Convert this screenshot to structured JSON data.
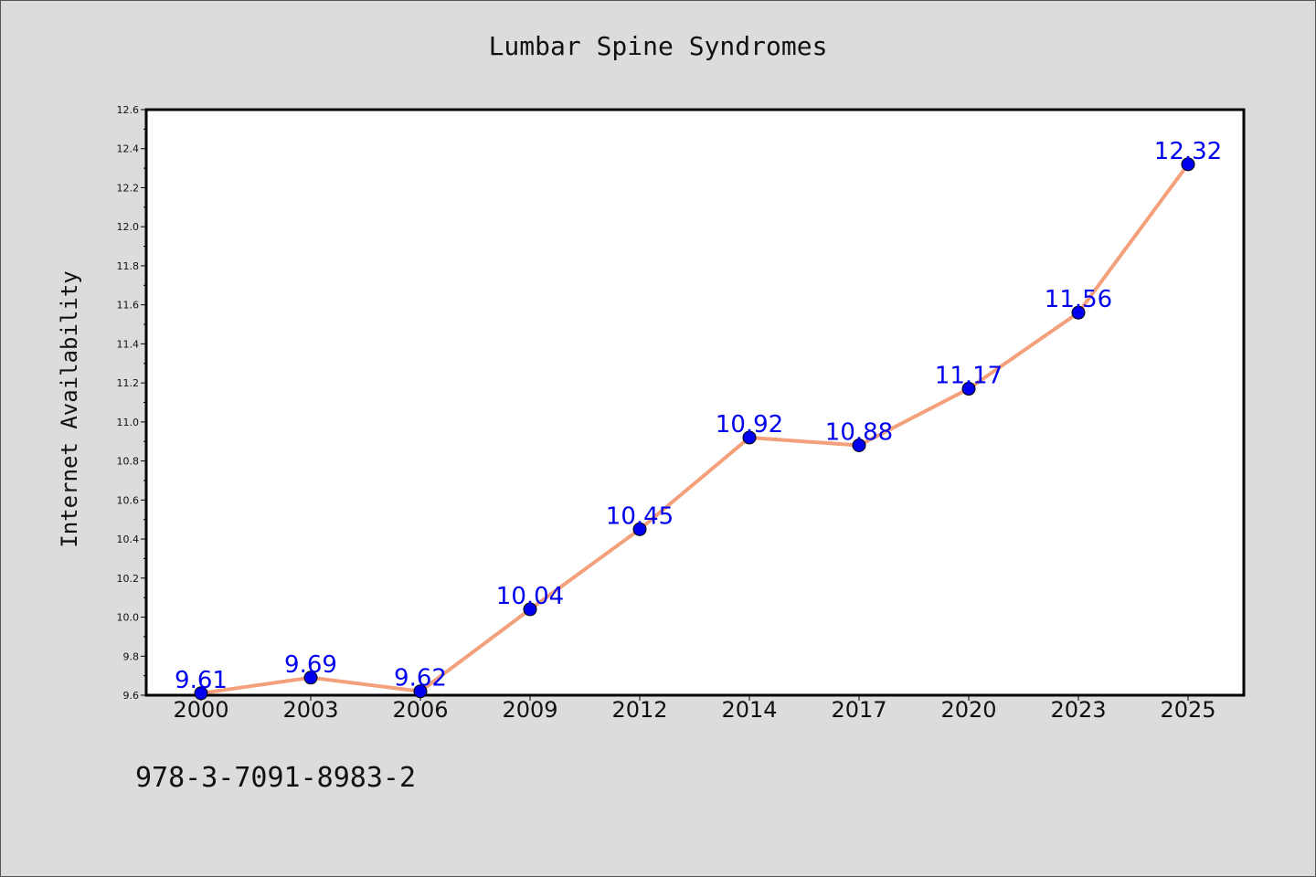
{
  "chart_data": {
    "type": "line",
    "title": "Lumbar Spine Syndromes",
    "xlabel": "",
    "ylabel": "Internet Availability",
    "categories": [
      "2000",
      "2003",
      "2006",
      "2009",
      "2012",
      "2014",
      "2017",
      "2020",
      "2023",
      "2025"
    ],
    "series": [
      {
        "values": [
          9.61,
          9.69,
          9.62,
          10.04,
          10.45,
          10.92,
          10.88,
          11.17,
          11.56,
          12.32
        ],
        "labels": [
          "9.61",
          "9.69",
          "9.62",
          "10.04",
          "10.45",
          "10.92",
          "10.88",
          "11.17",
          "11.56",
          "12.32"
        ]
      }
    ],
    "ylim": [
      9.6,
      12.6
    ],
    "yticks": [
      "9.6",
      "9.8",
      "10.0",
      "10.2",
      "10.4",
      "10.6",
      "10.8",
      "11.0",
      "11.2",
      "11.4",
      "11.6",
      "11.8",
      "12.0",
      "12.2",
      "12.4",
      "12.6"
    ],
    "grid": false,
    "legend": "none",
    "colors": {
      "line": "#f4a07a",
      "marker": "#0000ee",
      "label": "#0000ee",
      "background": "#dcdcdc",
      "plot_background": "#ffffff"
    }
  },
  "footer": {
    "code": "978-3-7091-8983-2"
  }
}
